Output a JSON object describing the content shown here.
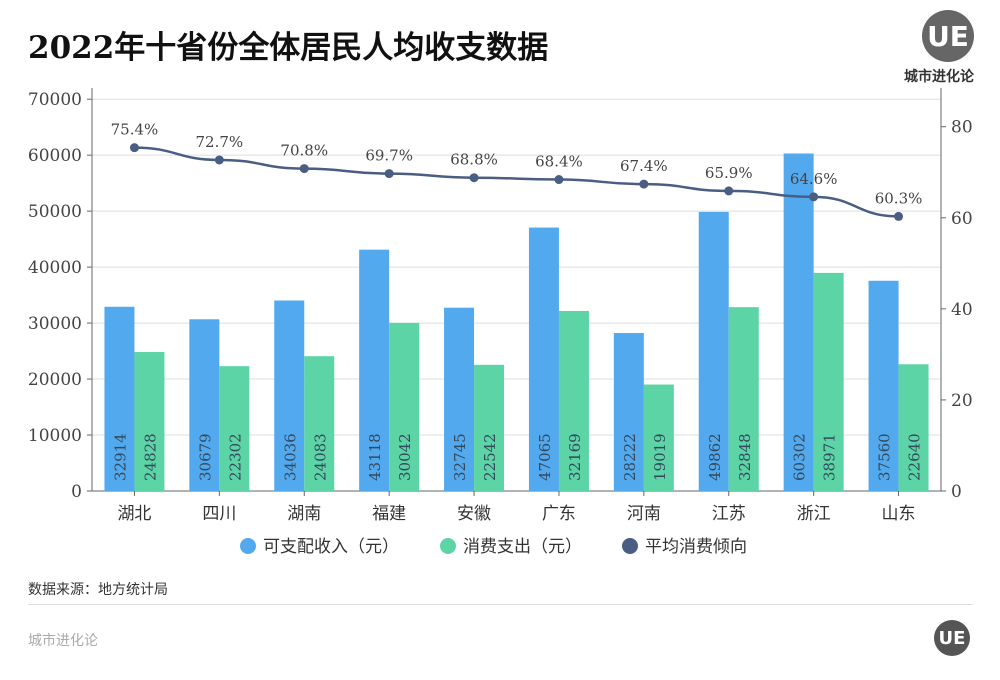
{
  "title": "2022年十省份全体居民人均收支数据",
  "brand": {
    "logo": "UE",
    "name": "城市进化论",
    "footer": "城市进化论"
  },
  "source": "数据来源：地方统计局",
  "colors": {
    "income": "#53a9ee",
    "spending": "#5dd4a5",
    "line": "#4a5d82",
    "grid": "#dddddd"
  },
  "chart_data": {
    "type": "bar+line",
    "categories": [
      "湖北",
      "四川",
      "湖南",
      "福建",
      "安徽",
      "广东",
      "河南",
      "江苏",
      "浙江",
      "山东"
    ],
    "series": [
      {
        "name": "可支配收入（元）",
        "type": "bar",
        "axis": "left",
        "values": [
          32914,
          30679,
          34036,
          43118,
          32745,
          47065,
          28222,
          49862,
          60302,
          37560
        ]
      },
      {
        "name": "消费支出（元）",
        "type": "bar",
        "axis": "left",
        "values": [
          24828,
          22302,
          24083,
          30042,
          22542,
          32169,
          19019,
          32848,
          38971,
          22640
        ]
      },
      {
        "name": "平均消费倾向",
        "type": "line",
        "axis": "right",
        "values": [
          75.4,
          72.7,
          70.8,
          69.7,
          68.8,
          68.4,
          67.4,
          65.9,
          64.6,
          60.3
        ],
        "labels": [
          "75.4%",
          "72.7%",
          "70.8%",
          "69.7%",
          "68.8%",
          "68.4%",
          "67.4%",
          "65.9%",
          "64.6%",
          "60.3%"
        ]
      }
    ],
    "y_left": {
      "ticks": [
        0,
        10000,
        20000,
        30000,
        40000,
        50000,
        60000,
        70000
      ],
      "range": [
        0,
        72000
      ]
    },
    "y_right": {
      "ticks": [
        0,
        20,
        40,
        60,
        80
      ],
      "range": [
        0,
        88.5
      ]
    },
    "grid": true,
    "legend": "bottom"
  }
}
